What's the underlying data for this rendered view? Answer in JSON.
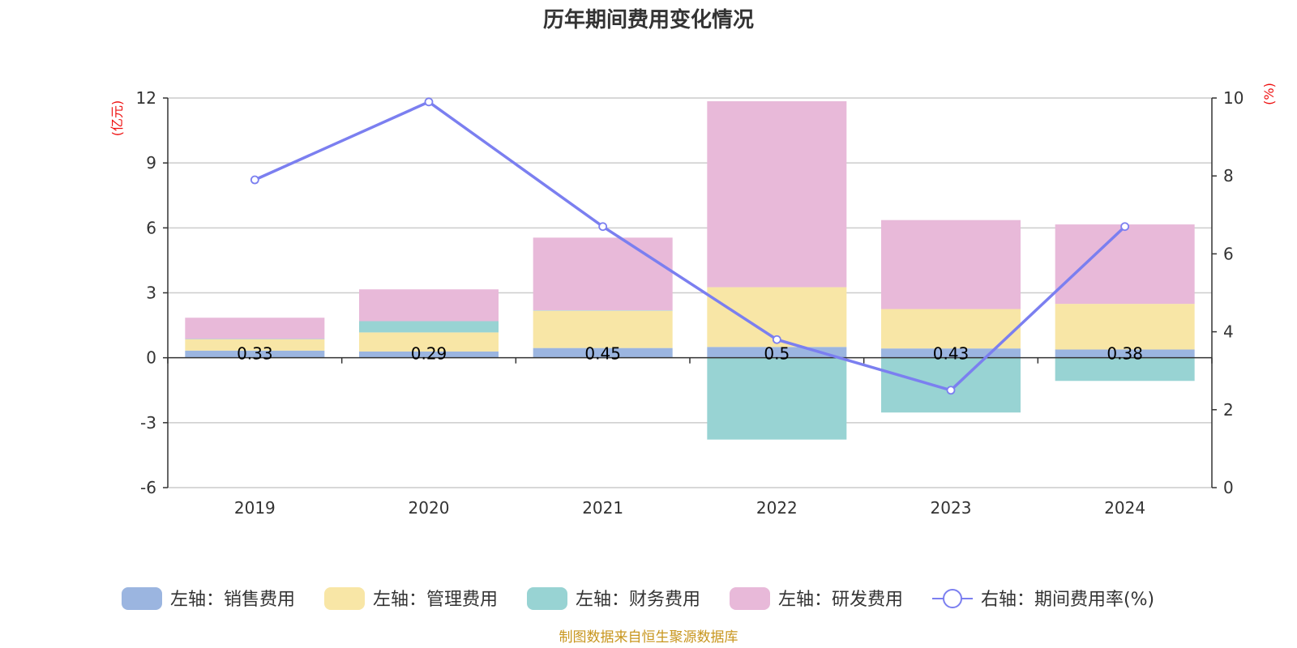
{
  "chart_data": {
    "type": "bar",
    "title": "历年期间费用变化情况",
    "categories": [
      "2019",
      "2020",
      "2021",
      "2022",
      "2023",
      "2024"
    ],
    "y_left": {
      "unit": "(亿元)",
      "min": -6,
      "max": 12,
      "ticks": [
        -6,
        -3,
        0,
        3,
        6,
        9,
        12
      ]
    },
    "y_right": {
      "unit": "(%)",
      "min": 0,
      "max": 10,
      "ticks": [
        0,
        2,
        4,
        6,
        8,
        10
      ]
    },
    "series": [
      {
        "name": "左轴：销售费用",
        "type": "bar",
        "axis": "left",
        "color": "#9bb5e0",
        "values": [
          0.33,
          0.29,
          0.45,
          0.5,
          0.43,
          0.38
        ],
        "labels": [
          "0.33",
          "0.29",
          "0.45",
          "0.5",
          "0.43",
          "0.38"
        ]
      },
      {
        "name": "左轴：管理费用",
        "type": "bar",
        "axis": "left",
        "color": "#f8e6a6",
        "values": [
          0.52,
          0.88,
          1.72,
          2.76,
          1.82,
          2.11
        ]
      },
      {
        "name": "左轴：财务费用",
        "type": "bar",
        "axis": "left",
        "color": "#98d3d3",
        "values": [
          0.02,
          0.52,
          0.02,
          -3.78,
          -2.53,
          -1.07
        ]
      },
      {
        "name": "左轴：研发费用",
        "type": "bar",
        "axis": "left",
        "color": "#e8b9d9",
        "values": [
          0.98,
          1.47,
          3.36,
          8.59,
          4.11,
          3.67
        ]
      },
      {
        "name": "右轴：期间费用率(%)",
        "type": "line",
        "axis": "right",
        "color": "#7b7ff0",
        "values": [
          7.9,
          9.9,
          6.7,
          3.8,
          2.5,
          6.7
        ]
      }
    ],
    "source": "制图数据来自恒生聚源数据库"
  }
}
